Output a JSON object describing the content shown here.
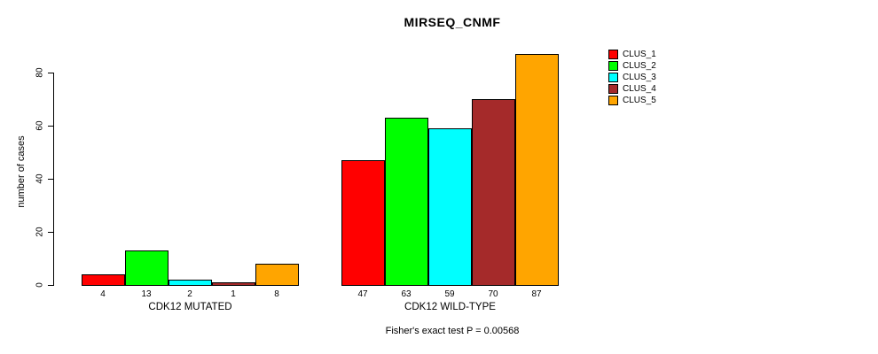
{
  "chart_data": {
    "type": "bar",
    "title": "MIRSEQ_CNMF",
    "ylabel": "number of cases",
    "xlabel": "",
    "caption": "Fisher's exact test P = 0.00568",
    "ylim": [
      0,
      87
    ],
    "yticks": [
      "0",
      "20",
      "40",
      "60",
      "80"
    ],
    "ytick_values": [
      0,
      20,
      40,
      60,
      80
    ],
    "grid": false,
    "legend_position": "top-right",
    "legend": [
      "CLUS_1",
      "CLUS_2",
      "CLUS_3",
      "CLUS_4",
      "CLUS_5"
    ],
    "colors": [
      "#FF0000",
      "#00FF00",
      "#00FFFF",
      "#A52A2A",
      "#FFA500"
    ],
    "bar_border_color": "#000000",
    "groups": [
      {
        "label": "CDK12 MUTATED",
        "values": [
          4,
          13,
          2,
          1,
          8
        ]
      },
      {
        "label": "CDK12 WILD-TYPE",
        "values": [
          47,
          63,
          59,
          70,
          87
        ]
      }
    ]
  }
}
